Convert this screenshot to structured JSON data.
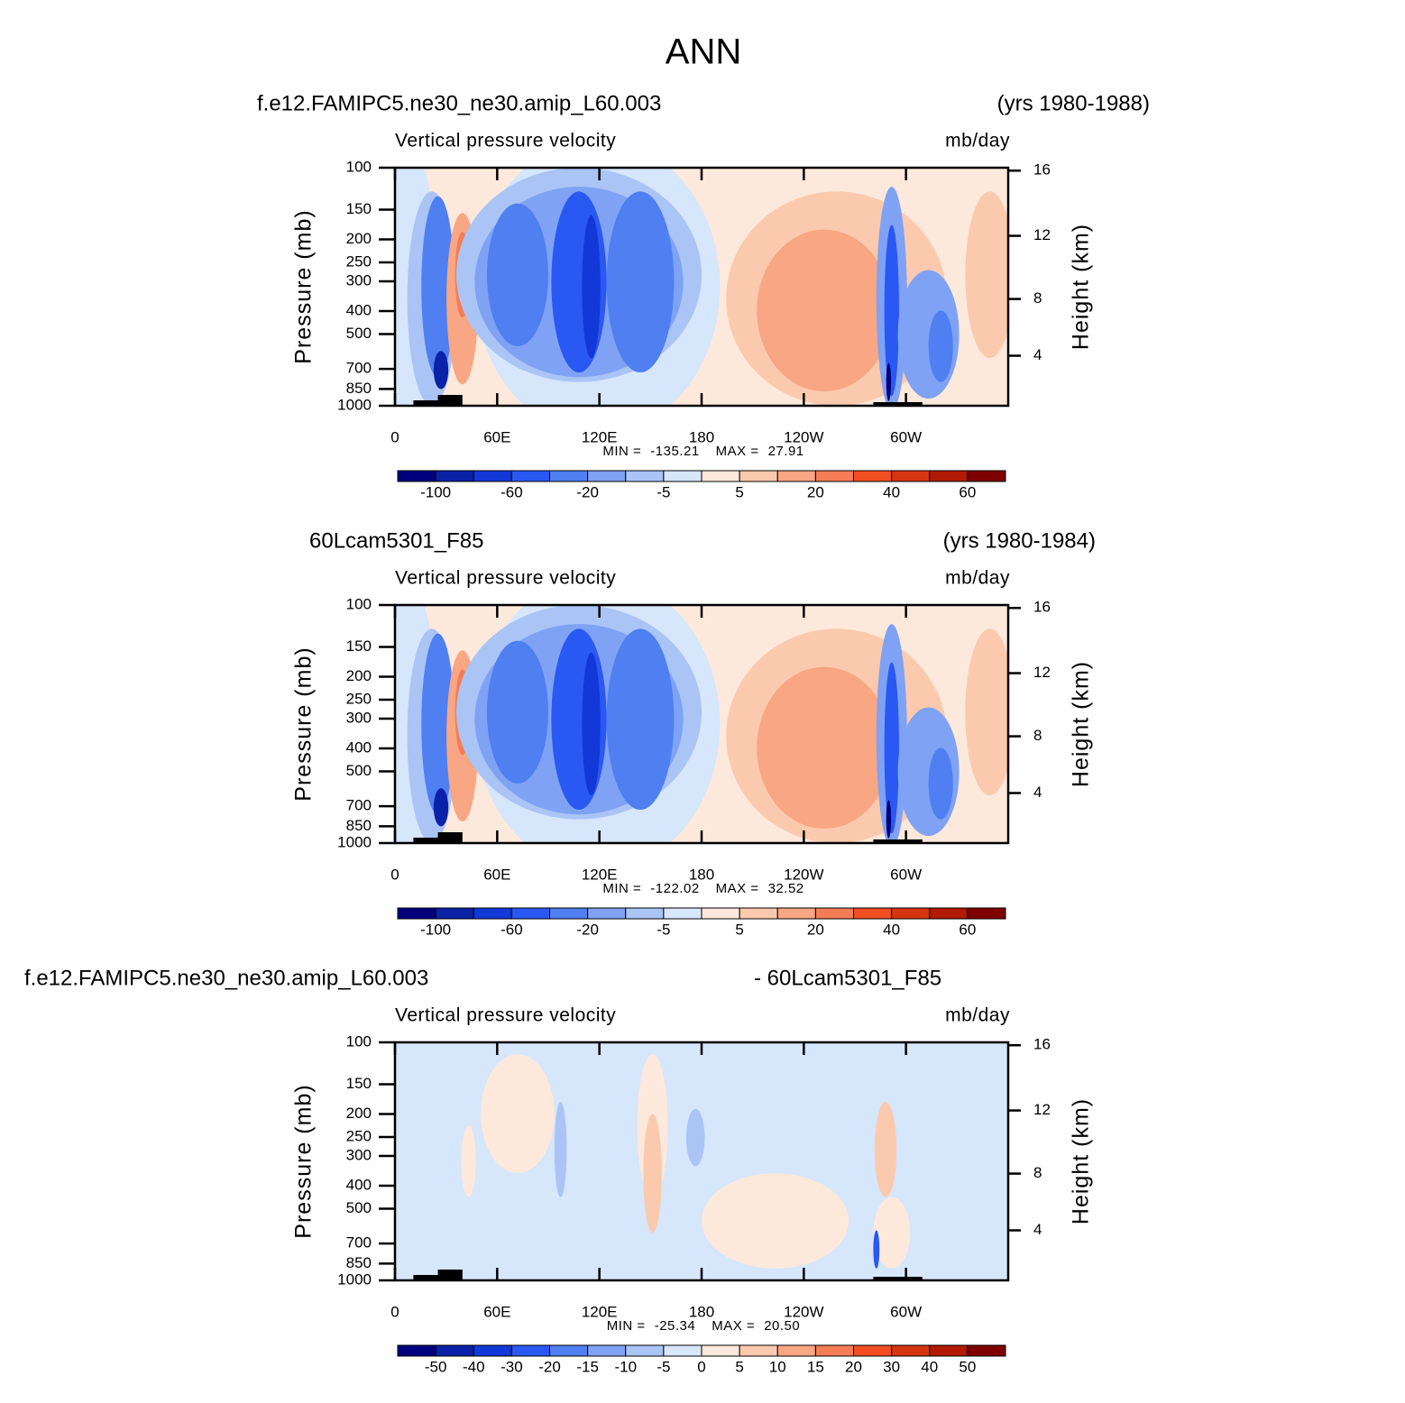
{
  "title": "ANN",
  "pressure_ticks": [
    100,
    150,
    200,
    250,
    300,
    400,
    500,
    700,
    850,
    1000
  ],
  "height_ticks": [
    16,
    12,
    8,
    4
  ],
  "lon_ticks": [
    {
      "value": 0,
      "label": "0"
    },
    {
      "value": 60,
      "label": "60E"
    },
    {
      "value": 120,
      "label": "120E"
    },
    {
      "value": 180,
      "label": "180"
    },
    {
      "value": 240,
      "label": "120W"
    },
    {
      "value": 300,
      "label": "60W"
    }
  ],
  "lon_range": [
    0,
    360
  ],
  "pressure_range": [
    100,
    1000
  ],
  "colors": [
    "#00007f",
    "#0a22a8",
    "#1238d8",
    "#2a58f2",
    "#4f7ff0",
    "#7fa2f4",
    "#aac4f6",
    "#d6e6fb",
    "#fde9db",
    "#fbcaae",
    "#f8a683",
    "#f47d56",
    "#f14f22",
    "#d63512",
    "#b11a04",
    "#7f0000"
  ],
  "panels": [
    {
      "left": "f.e12.FAMIPC5.ne30_ne30.amip_L60.003",
      "right": "(yrs 1980-1988)",
      "variable": "Vertical pressure velocity",
      "units": "mb/day",
      "ylabel": "Pressure (mb)",
      "y2label": "Height (km)",
      "min_label": "MIN =",
      "min": -135.21,
      "max_label": "MAX =",
      "max": 27.91,
      "levels": [
        -100,
        null,
        -60,
        null,
        -20,
        null,
        -5,
        null,
        5,
        null,
        20,
        null,
        40,
        null,
        60
      ]
    },
    {
      "left": "60Lcam5301_F85",
      "right": "(yrs 1980-1984)",
      "variable": "Vertical pressure velocity",
      "units": "mb/day",
      "ylabel": "Pressure (mb)",
      "y2label": "Height (km)",
      "min_label": "MIN =",
      "min": -122.02,
      "max_label": "MAX =",
      "max": 32.52,
      "levels": [
        -100,
        null,
        -60,
        null,
        -20,
        null,
        -5,
        null,
        5,
        null,
        20,
        null,
        40,
        null,
        60
      ]
    },
    {
      "left": "f.e12.FAMIPC5.ne30_ne30.amip_L60.003",
      "right": "- 60Lcam5301_F85",
      "variable": "Vertical pressure velocity",
      "units": "mb/day",
      "ylabel": "Pressure (mb)",
      "y2label": "Height (km)",
      "min_label": "MIN =",
      "min": -25.34,
      "max_label": "MAX =",
      "max": 20.5,
      "levels": [
        -50,
        -40,
        -30,
        -20,
        -15,
        -10,
        -5,
        0,
        5,
        10,
        15,
        20,
        30,
        40,
        50
      ]
    }
  ]
}
